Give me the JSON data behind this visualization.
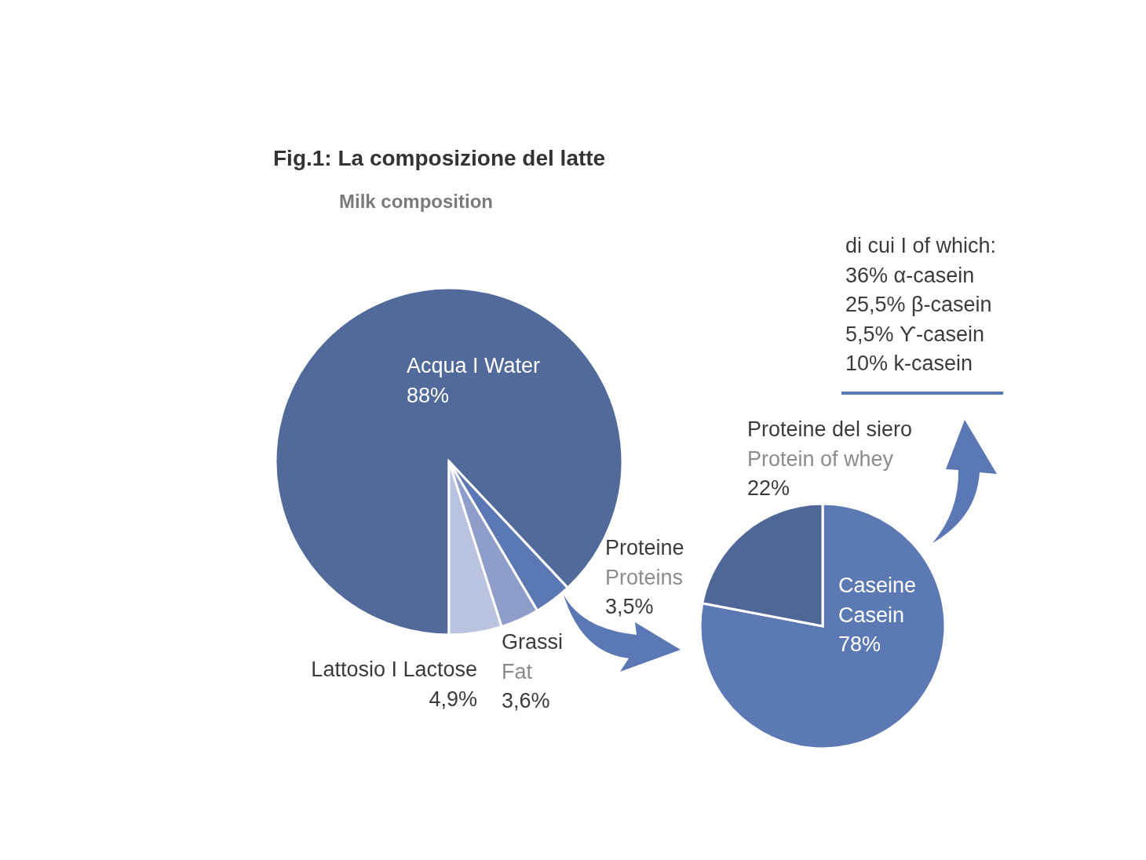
{
  "chart_data": [
    {
      "type": "pie",
      "title": "Fig.1: La composizione del latte",
      "subtitle": "Milk composition",
      "categories": [
        "Acqua I Water",
        "Proteine\nProteins",
        "Grassi\nFat",
        "Lattosio I Lactose"
      ],
      "values": [
        88,
        3.5,
        3.6,
        4.9
      ],
      "colors": [
        "#516a99",
        "#5b78b5",
        "#8e9dca",
        "#bac3de"
      ],
      "value_labels": [
        "88%",
        "3,5%",
        "3,6%",
        "4,9%"
      ]
    },
    {
      "type": "pie",
      "categories": [
        "Caseine\nCasein",
        "Proteine del siero\nProtein of whey"
      ],
      "values": [
        78,
        22
      ],
      "colors": [
        "#5d79b4",
        "#4f6797"
      ],
      "value_labels": [
        "78%",
        "22%"
      ]
    },
    {
      "type": "other",
      "annotations": [
        "di cui I of which:",
        "36% α-casein",
        "25,5% β-casein",
        "5,5% ϒ-casein",
        "10% k-casein"
      ]
    }
  ]
}
